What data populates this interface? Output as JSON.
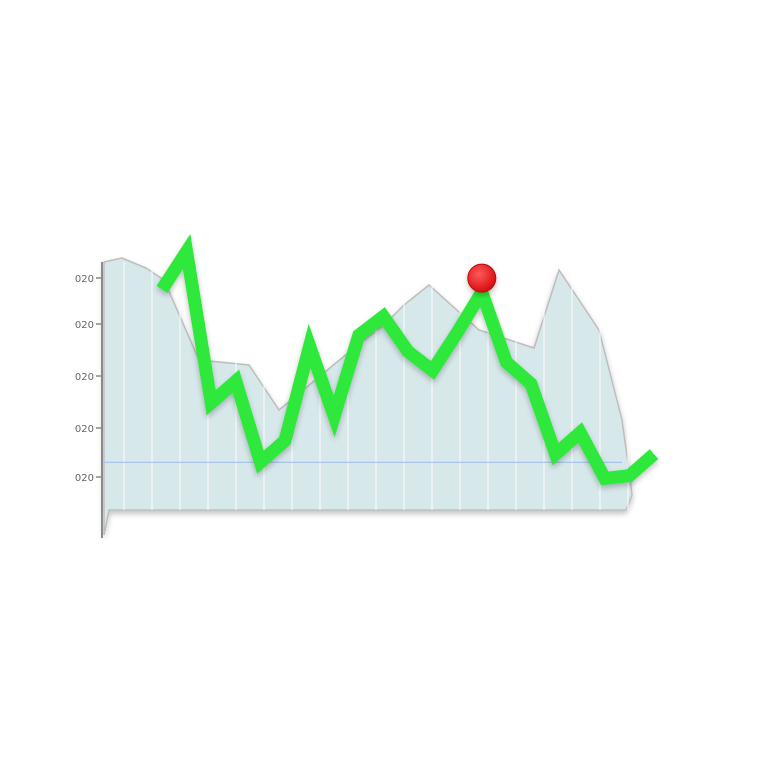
{
  "chart_data": {
    "type": "line",
    "title": "",
    "xlabel": "",
    "ylabel": "",
    "y_ticks": [
      "020",
      "020",
      "020",
      "020",
      "020"
    ],
    "ylim": [
      0,
      100
    ],
    "grid": "vertical",
    "legend": "none",
    "series": [
      {
        "values": [
          78,
          92,
          36,
          44,
          14,
          22,
          57,
          31,
          61,
          68,
          55,
          48,
          62,
          77,
          51,
          43,
          17,
          25,
          8,
          9,
          17
        ]
      }
    ],
    "highlight": {
      "series_index": 0,
      "point_index": 13,
      "value": 77
    },
    "baseline_value": 8
  },
  "colors": {
    "line": "#2ee83a",
    "line_shadow": "#1a9f24",
    "area_fill": "#d7e8ea",
    "area_edge": "#bdbdbd",
    "grid": "#ffffff",
    "baseline": "#a8c4ea",
    "highlight_point": "#e8161a",
    "axis": "#8a8a8a"
  }
}
